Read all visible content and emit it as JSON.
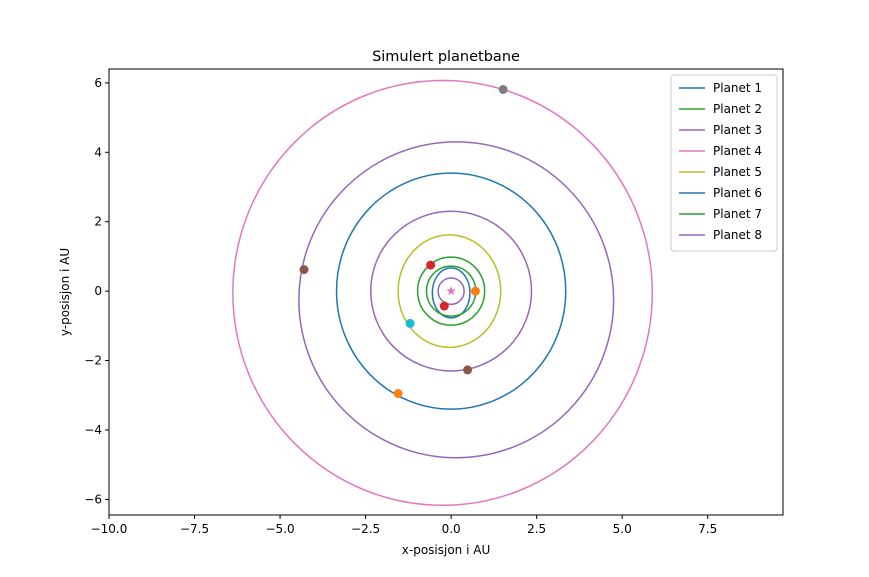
{
  "chart_data": {
    "type": "line",
    "title": "Simulert planetbane",
    "xlabel": "x-posisjon i AU",
    "ylabel": "y-posisjon i AU",
    "xlim": [
      -10.0,
      9.7
    ],
    "ylim": [
      -6.45,
      6.4
    ],
    "xticks": [
      -10.0,
      -7.5,
      -5.0,
      -2.5,
      0.0,
      2.5,
      5.0,
      7.5
    ],
    "xtick_labels": [
      "−10.0",
      "−7.5",
      "−5.0",
      "−2.5",
      "0.0",
      "2.5",
      "5.0",
      "7.5"
    ],
    "yticks": [
      -6,
      -4,
      -2,
      0,
      2,
      4,
      6
    ],
    "ytick_labels": [
      "−6",
      "−4",
      "−2",
      "0",
      "2",
      "4",
      "6"
    ],
    "grid": false,
    "legend_position": "top-right",
    "star": {
      "x": 0.0,
      "y": 0.0,
      "marker": "star",
      "color": "#e377c2"
    },
    "series": [
      {
        "name": "Planet 1",
        "color": "#1f77b4",
        "orbit": {
          "cx": 0.0,
          "cy": -0.05,
          "rx": 0.55,
          "ry": 0.72
        },
        "position": {
          "x": -0.2,
          "y": -0.43,
          "color": "#d62728"
        }
      },
      {
        "name": "Planet 2",
        "color": "#2ca02c",
        "orbit": {
          "cx": 0.0,
          "cy": 0.0,
          "rx": 0.72,
          "ry": 0.72
        },
        "position": {
          "x": 0.71,
          "y": 0.0,
          "color": "#ff7f0e"
        }
      },
      {
        "name": "Planet 3",
        "color": "#9467bd",
        "orbit": {
          "cx": 0.0,
          "cy": 0.0,
          "rx": 0.38,
          "ry": 0.38
        },
        "position": null
      },
      {
        "name": "Planet 4",
        "color": "#e377c2",
        "orbit": {
          "cx": -0.25,
          "cy": -0.05,
          "rx": 6.13,
          "ry": 6.12
        },
        "position": {
          "x": 1.52,
          "y": 5.81,
          "color": "#7f7f7f"
        }
      },
      {
        "name": "Planet 5",
        "color": "#bcbd22",
        "orbit": {
          "cx": -0.05,
          "cy": 0.0,
          "rx": 1.5,
          "ry": 1.62
        },
        "position": {
          "x": -1.2,
          "y": -0.93,
          "color": "#17becf"
        }
      },
      {
        "name": "Planet 6",
        "color": "#1f77b4",
        "orbit": {
          "cx": 0.0,
          "cy": 0.0,
          "rx": 3.35,
          "ry": 3.4
        },
        "position": {
          "x": -1.55,
          "y": -2.95,
          "color": "#ff7f0e"
        }
      },
      {
        "name": "Planet 7",
        "color": "#2ca02c",
        "orbit": {
          "cx": 0.0,
          "cy": 0.0,
          "rx": 0.98,
          "ry": 0.98
        },
        "position": {
          "x": -0.6,
          "y": 0.75,
          "color": "#d62728"
        }
      },
      {
        "name": "Planet 8",
        "color": "#9467bd",
        "orbit": {
          "cx": 0.15,
          "cy": -0.25,
          "rx": 4.6,
          "ry": 4.55
        },
        "position": {
          "x": -4.3,
          "y": 0.62,
          "color": "#8c564b"
        }
      },
      {
        "name": "",
        "color": "#9467bd",
        "orbit": {
          "cx": 0.0,
          "cy": 0.0,
          "rx": 2.35,
          "ry": 2.3
        },
        "position": {
          "x": 0.48,
          "y": -2.27,
          "color": "#8c564b"
        }
      }
    ]
  }
}
